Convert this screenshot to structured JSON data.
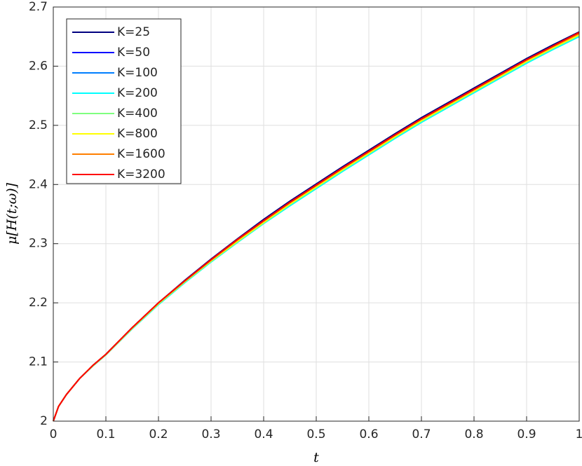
{
  "chart_data": {
    "type": "line",
    "x_label": "t",
    "y_label": "μ[H(t;ω)]",
    "x": [
      0,
      0.01,
      0.025,
      0.05,
      0.075,
      0.1,
      0.15,
      0.2,
      0.25,
      0.3,
      0.35,
      0.4,
      0.45,
      0.5,
      0.55,
      0.6,
      0.65,
      0.7,
      0.75,
      0.8,
      0.85,
      0.9,
      0.95,
      1
    ],
    "series": [
      {
        "name": "K=25",
        "color": "#00007f",
        "values": [
          2,
          2.025,
          2.045,
          2.072,
          2.094,
          2.113,
          2.158,
          2.2,
          2.238,
          2.274,
          2.308,
          2.341,
          2.372,
          2.401,
          2.43,
          2.458,
          2.486,
          2.513,
          2.538,
          2.563,
          2.588,
          2.613,
          2.636,
          2.658
        ]
      },
      {
        "name": "K=50",
        "color": "#0000ff",
        "values": [
          2,
          2.025,
          2.045,
          2.072,
          2.094,
          2.113,
          2.158,
          2.2,
          2.237,
          2.273,
          2.307,
          2.339,
          2.37,
          2.399,
          2.428,
          2.456,
          2.484,
          2.511,
          2.536,
          2.561,
          2.586,
          2.611,
          2.634,
          2.656
        ]
      },
      {
        "name": "K=100",
        "color": "#007fff",
        "values": [
          2,
          2.025,
          2.045,
          2.072,
          2.094,
          2.113,
          2.158,
          2.199,
          2.236,
          2.271,
          2.305,
          2.337,
          2.367,
          2.396,
          2.425,
          2.453,
          2.481,
          2.508,
          2.533,
          2.558,
          2.583,
          2.608,
          2.631,
          2.653
        ]
      },
      {
        "name": "K=200",
        "color": "#00ffff",
        "values": [
          2,
          2.025,
          2.045,
          2.072,
          2.093,
          2.112,
          2.156,
          2.197,
          2.234,
          2.269,
          2.302,
          2.334,
          2.364,
          2.393,
          2.422,
          2.45,
          2.478,
          2.505,
          2.53,
          2.555,
          2.58,
          2.605,
          2.628,
          2.65
        ]
      },
      {
        "name": "K=400",
        "color": "#7fff7f",
        "values": [
          2,
          2.025,
          2.045,
          2.072,
          2.093,
          2.112,
          2.157,
          2.198,
          2.235,
          2.27,
          2.303,
          2.335,
          2.366,
          2.395,
          2.424,
          2.452,
          2.48,
          2.507,
          2.532,
          2.557,
          2.582,
          2.607,
          2.63,
          2.652
        ]
      },
      {
        "name": "K=800",
        "color": "#ffff00",
        "values": [
          2,
          2.025,
          2.045,
          2.072,
          2.094,
          2.113,
          2.157,
          2.199,
          2.236,
          2.271,
          2.304,
          2.336,
          2.367,
          2.396,
          2.425,
          2.453,
          2.481,
          2.508,
          2.533,
          2.558,
          2.583,
          2.608,
          2.631,
          2.653
        ]
      },
      {
        "name": "K=1600",
        "color": "#ff7f00",
        "values": [
          2,
          2.025,
          2.045,
          2.072,
          2.094,
          2.113,
          2.158,
          2.2,
          2.237,
          2.272,
          2.306,
          2.338,
          2.369,
          2.398,
          2.427,
          2.455,
          2.483,
          2.51,
          2.535,
          2.56,
          2.585,
          2.61,
          2.633,
          2.655
        ]
      },
      {
        "name": "K=3200",
        "color": "#ff0000",
        "values": [
          2,
          2.025,
          2.045,
          2.072,
          2.094,
          2.113,
          2.158,
          2.2,
          2.237,
          2.273,
          2.307,
          2.339,
          2.37,
          2.399,
          2.428,
          2.456,
          2.484,
          2.511,
          2.536,
          2.561,
          2.586,
          2.611,
          2.634,
          2.657
        ]
      }
    ],
    "xlim": [
      0,
      1
    ],
    "ylim": [
      2,
      2.7
    ],
    "xticks": [
      0,
      0.1,
      0.2,
      0.3,
      0.4,
      0.5,
      0.6,
      0.7,
      0.8,
      0.9,
      1
    ],
    "yticks": [
      2,
      2.1,
      2.2,
      2.3,
      2.4,
      2.5,
      2.6,
      2.7
    ],
    "grid": true,
    "legend": "upper left"
  }
}
